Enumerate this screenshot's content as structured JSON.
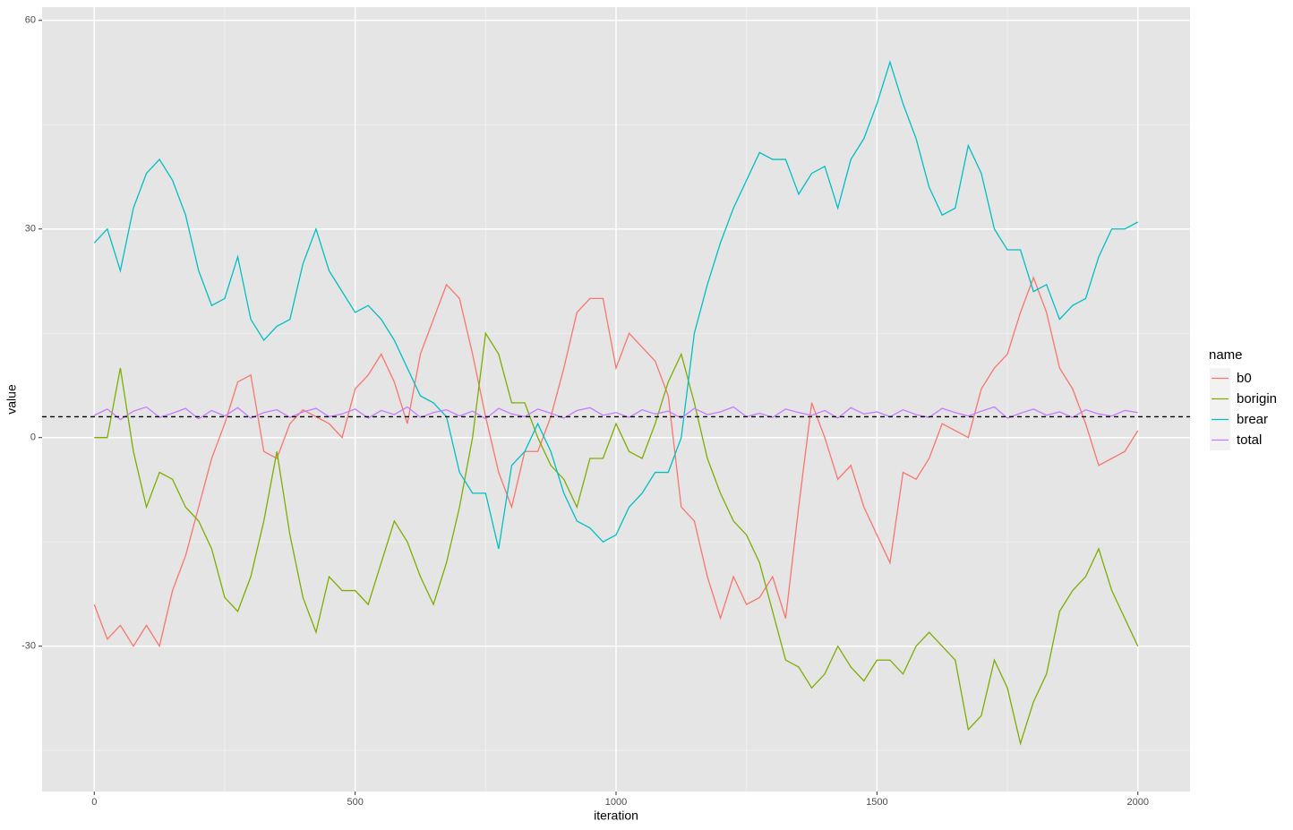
{
  "chart_data": {
    "type": "line",
    "x_label": "iteration",
    "y_label": "value",
    "legend_title": "name",
    "xlim": [
      -100,
      2100
    ],
    "ylim": [
      -50.9,
      61.9
    ],
    "xticks": [
      0,
      500,
      1000,
      1500,
      2000
    ],
    "yticks": [
      -30,
      0,
      30,
      60
    ],
    "minor_xticks": [
      250,
      750,
      1250,
      1750
    ],
    "minor_yticks": [
      -45,
      -15,
      15,
      45
    ],
    "grid": true,
    "legend_position": "right",
    "hline": 3,
    "x": [
      0,
      25,
      50,
      75,
      100,
      125,
      150,
      175,
      200,
      225,
      250,
      275,
      300,
      325,
      350,
      375,
      400,
      425,
      450,
      475,
      500,
      525,
      550,
      575,
      600,
      625,
      650,
      675,
      700,
      725,
      750,
      775,
      800,
      825,
      850,
      875,
      900,
      925,
      950,
      975,
      1000,
      1025,
      1050,
      1075,
      1100,
      1125,
      1150,
      1175,
      1200,
      1225,
      1250,
      1275,
      1300,
      1325,
      1350,
      1375,
      1400,
      1425,
      1450,
      1475,
      1500,
      1525,
      1550,
      1575,
      1600,
      1625,
      1650,
      1675,
      1700,
      1725,
      1750,
      1775,
      1800,
      1825,
      1850,
      1875,
      1900,
      1925,
      1950,
      1975,
      2000
    ],
    "series": [
      {
        "name": "b0",
        "color": "#F8766D",
        "values": [
          -24,
          -29,
          -27,
          -30,
          -27,
          -30,
          -22,
          -17,
          -10,
          -3,
          2,
          8,
          9,
          -2,
          -3,
          2,
          4,
          3,
          2,
          0,
          7,
          9,
          12,
          8,
          2,
          12,
          17,
          22,
          20,
          12,
          3,
          -5,
          -10,
          -2,
          -2,
          3,
          10,
          18,
          20,
          20,
          10,
          15,
          13,
          11,
          6,
          -10,
          -12,
          -20,
          -26,
          -20,
          -24,
          -23,
          -20,
          -26,
          -10,
          5,
          0,
          -6,
          -4,
          -10,
          -14,
          -18,
          -5,
          -6,
          -3,
          2,
          1,
          0,
          7,
          10,
          12,
          18,
          23,
          18,
          10,
          7,
          2,
          -4,
          -3,
          -2,
          1
        ]
      },
      {
        "name": "borigin",
        "color": "#7CAE00",
        "values": [
          0,
          0,
          10,
          -2,
          -10,
          -5,
          -6,
          -10,
          -12,
          -16,
          -23,
          -25,
          -20,
          -12,
          -2,
          -14,
          -23,
          -28,
          -20,
          -22,
          -22,
          -24,
          -18,
          -12,
          -15,
          -20,
          -24,
          -18,
          -10,
          0,
          15,
          12,
          5,
          5,
          0,
          -4,
          -6,
          -10,
          -3,
          -3,
          2,
          -2,
          -3,
          2,
          8,
          12,
          5,
          -3,
          -8,
          -12,
          -14,
          -18,
          -25,
          -32,
          -33,
          -36,
          -34,
          -30,
          -33,
          -35,
          -32,
          -32,
          -34,
          -30,
          -28,
          -30,
          -32,
          -42,
          -40,
          -32,
          -36,
          -44,
          -38,
          -34,
          -25,
          -22,
          -20,
          -16,
          -22,
          -26,
          -30
        ]
      },
      {
        "name": "brear",
        "color": "#00BFC4",
        "values": [
          28,
          30,
          24,
          33,
          38,
          40,
          37,
          32,
          24,
          19,
          20,
          26,
          17,
          14,
          16,
          17,
          25,
          30,
          24,
          21,
          18,
          19,
          17,
          14,
          10,
          6,
          5,
          3,
          -5,
          -8,
          -8,
          -16,
          -4,
          -2,
          2,
          -2,
          -8,
          -12,
          -13,
          -15,
          -14,
          -10,
          -8,
          -5,
          -5,
          0,
          15,
          22,
          28,
          33,
          37,
          41,
          40,
          40,
          35,
          38,
          39,
          33,
          40,
          43,
          48,
          54,
          48,
          43,
          36,
          32,
          33,
          42,
          38,
          30,
          27,
          27,
          21,
          22,
          17,
          19,
          20,
          26,
          30,
          30,
          31
        ]
      },
      {
        "name": "total",
        "color": "#C77CFF",
        "values": [
          3.2,
          4.1,
          2.6,
          3.8,
          4.4,
          2.9,
          3.5,
          4.2,
          2.7,
          3.9,
          3.1,
          4.3,
          2.8,
          3.6,
          4.0,
          2.9,
          3.7,
          4.2,
          3.0,
          3.4,
          4.1,
          2.8,
          3.9,
          3.3,
          4.4,
          2.9,
          3.6,
          4.0,
          3.1,
          3.8,
          2.7,
          4.2,
          3.4,
          3.0,
          4.1,
          3.5,
          2.8,
          3.9,
          4.3,
          3.2,
          3.6,
          2.9,
          4.0,
          3.4,
          3.8,
          2.8,
          4.2,
          3.3,
          3.7,
          4.4,
          3.0,
          3.5,
          2.9,
          4.1,
          3.6,
          3.2,
          3.9,
          2.8,
          4.3,
          3.4,
          3.7,
          3.0,
          4.0,
          3.3,
          2.9,
          4.2,
          3.6,
          3.1,
          3.8,
          4.4,
          2.8,
          3.5,
          4.1,
          3.2,
          3.7,
          2.9,
          4.0,
          3.4,
          3.1,
          3.9,
          3.6
        ]
      }
    ]
  }
}
